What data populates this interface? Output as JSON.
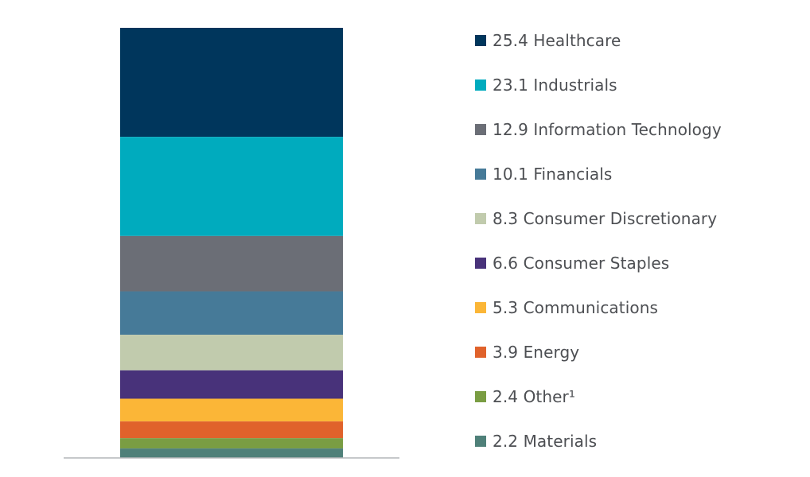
{
  "chart_data": {
    "type": "bar",
    "stacked": true,
    "categories": [
      "Healthcare",
      "Industrials",
      "Information Technology",
      "Financials",
      "Consumer Discretionary",
      "Consumer Staples",
      "Communications",
      "Energy",
      "Other¹",
      "Materials"
    ],
    "values": [
      25.4,
      23.1,
      12.9,
      10.1,
      8.3,
      6.6,
      5.3,
      3.9,
      2.4,
      2.2
    ],
    "colors": [
      "#00365c",
      "#00abbe",
      "#6b6e76",
      "#467a98",
      "#c1cbad",
      "#48327a",
      "#fbb637",
      "#e0622b",
      "#7a9d43",
      "#4f8079"
    ],
    "legend_labels": [
      "25.4 Healthcare",
      "23.1 Industrials",
      "12.9 Information Technology",
      "10.1 Financials",
      "8.3 Consumer Discretionary",
      "6.6 Consumer Staples",
      "5.3 Communications",
      "3.9 Energy",
      "2.4 Other¹",
      "2.2 Materials"
    ],
    "legend_position": "right",
    "grid": false,
    "title": "",
    "xlabel": "",
    "ylabel": ""
  }
}
